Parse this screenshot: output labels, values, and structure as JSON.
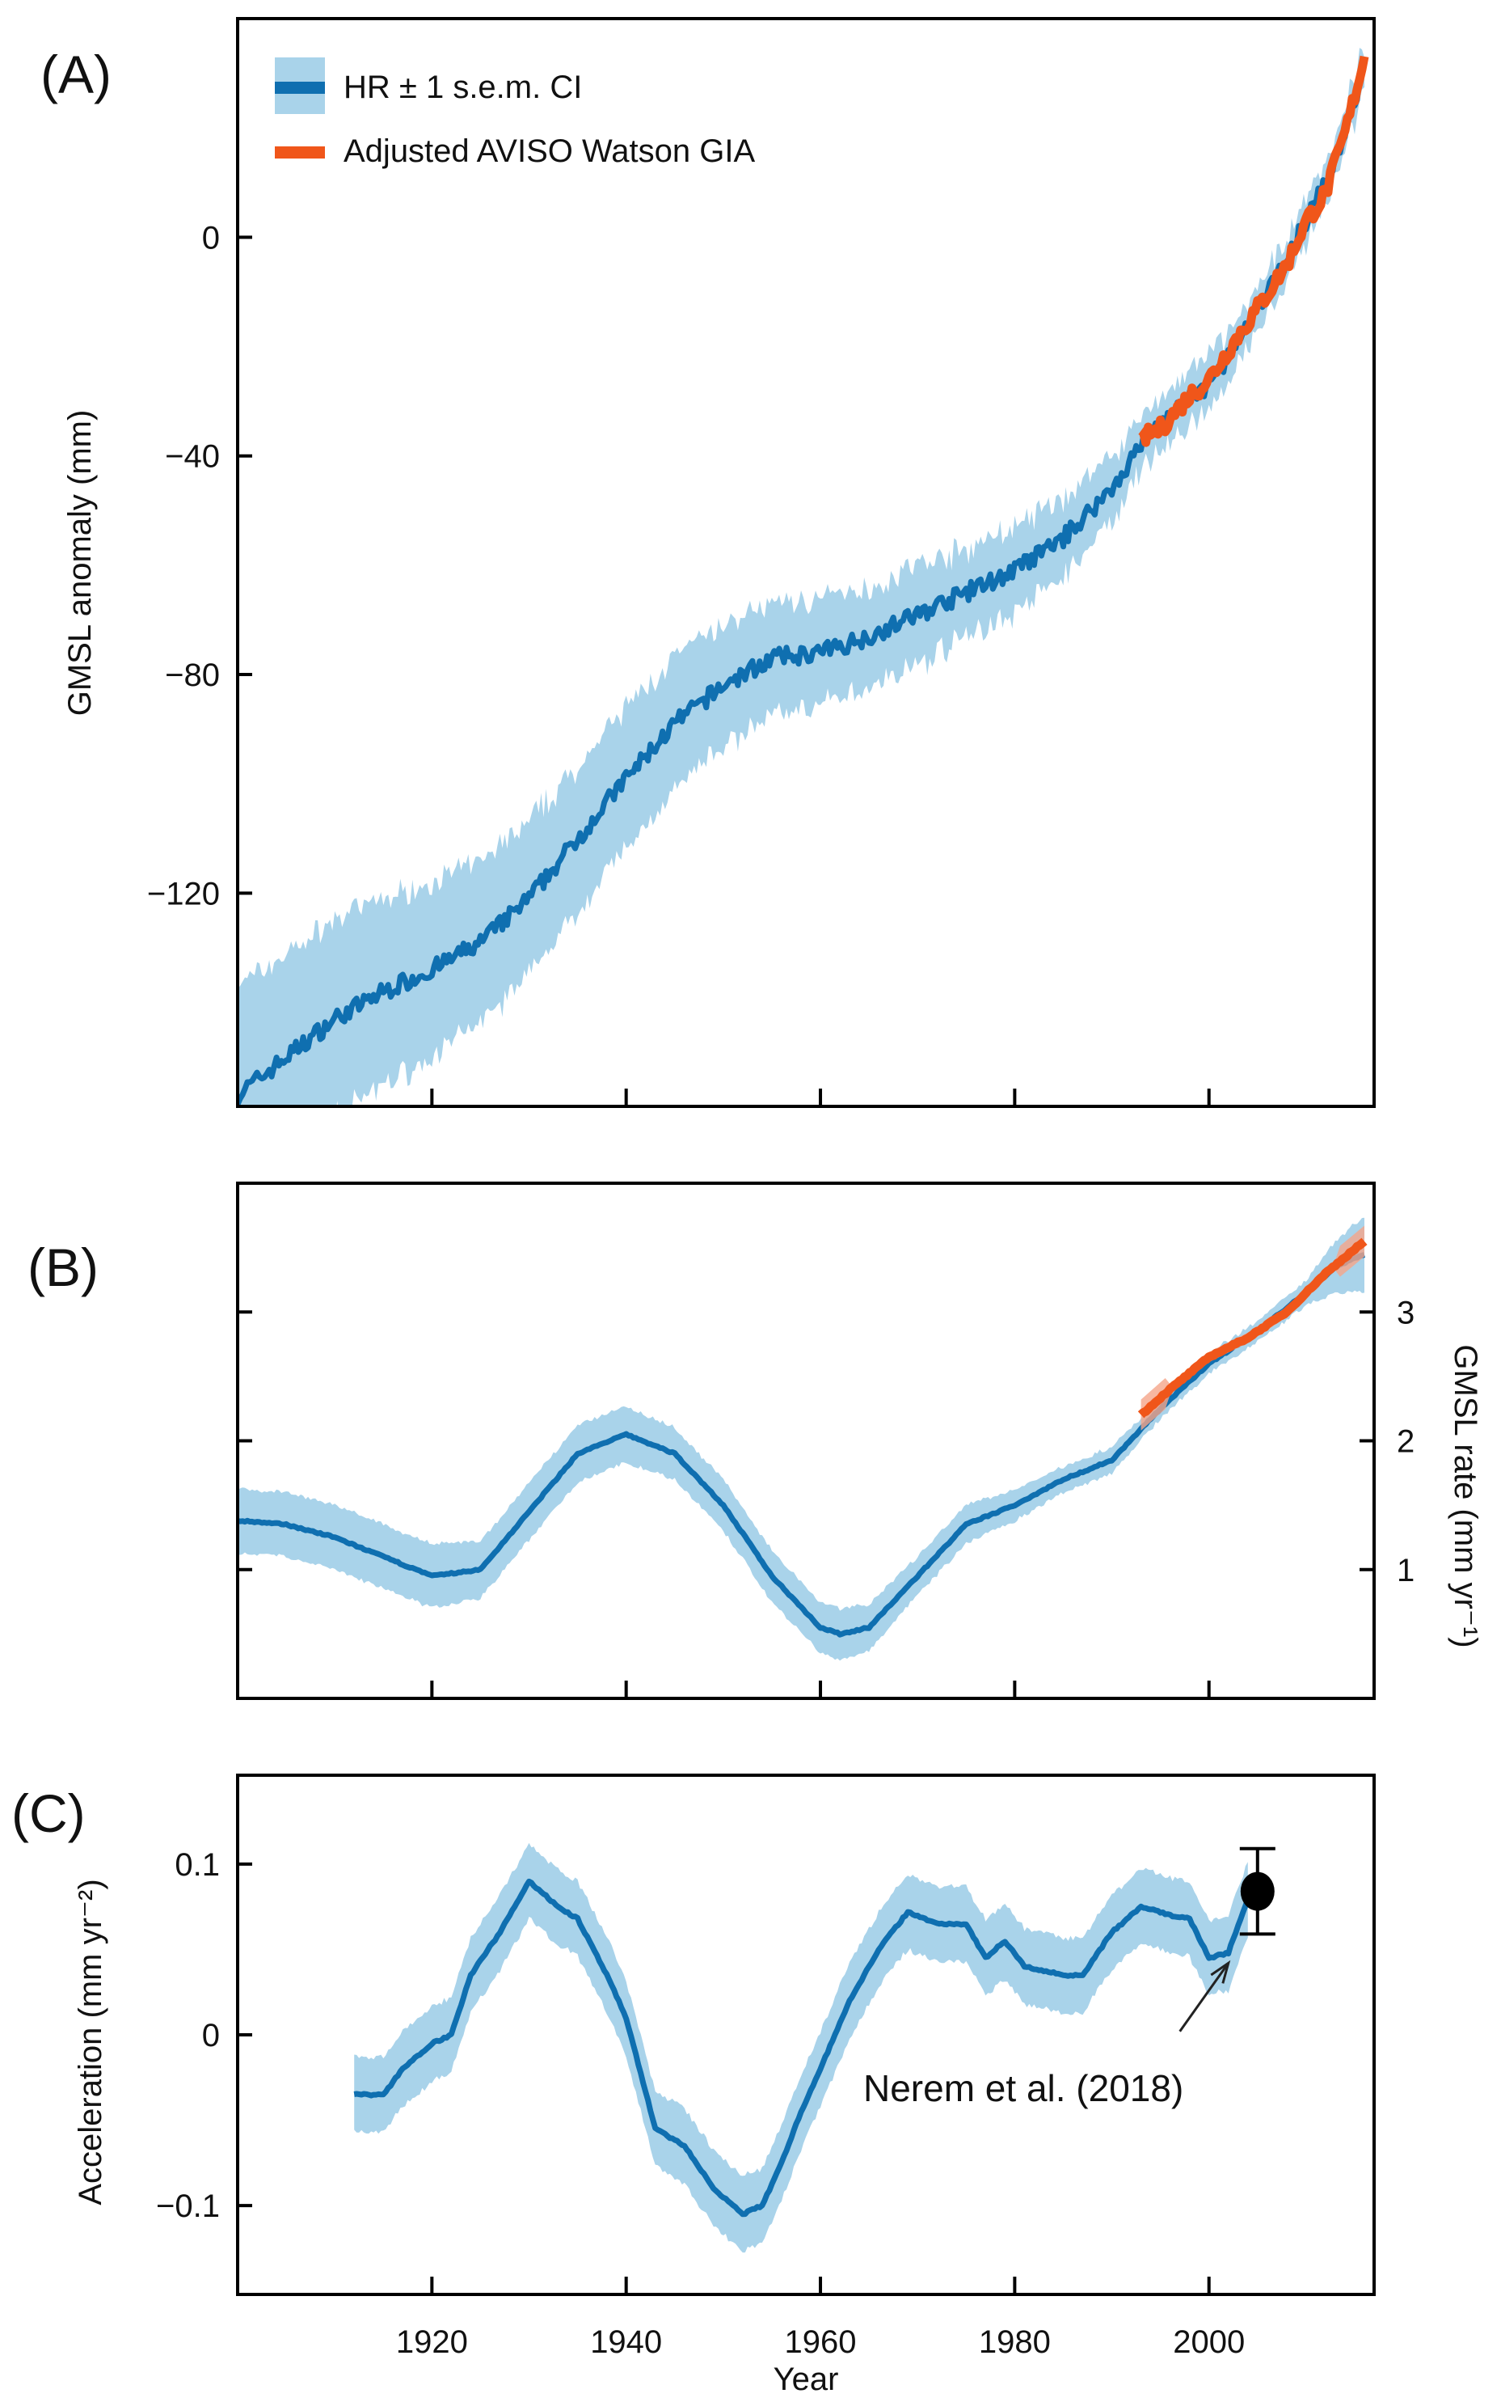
{
  "colors": {
    "band": "#a9d3ea",
    "line": "#0f6fb0",
    "aviso": "#f0561a",
    "aviso_band": "#f5a58a",
    "point": "#000000"
  },
  "chart_data": [
    {
      "type": "line",
      "panel_label": "(A)",
      "ylabel": "GMSL anomaly (mm)",
      "xlim": [
        1900,
        2017
      ],
      "ylim": [
        -159,
        40
      ],
      "yticks": [
        0,
        -40,
        -80,
        -120
      ],
      "ytick_labels": [
        "0",
        "−40",
        "−80",
        "−120"
      ],
      "xticks": [
        1920,
        1940,
        1960,
        1980,
        2000
      ],
      "legend": {
        "placement": "top-left",
        "entries": [
          "HR ± 1 s.e.m. CI",
          "Adjusted AVISO Watson GIA"
        ]
      },
      "series": [
        {
          "name": "HR ± 1 s.e.m. CI",
          "x": [
            1900,
            1905,
            1910,
            1915,
            1920,
            1925,
            1930,
            1935,
            1940,
            1945,
            1950,
            1955,
            1960,
            1965,
            1970,
            1975,
            1980,
            1985,
            1990,
            1993,
            1995,
            2000,
            2005,
            2010,
            2013,
            2016
          ],
          "y": [
            -157,
            -150,
            -143,
            -138,
            -134,
            -129,
            -121,
            -110,
            -99,
            -89,
            -82,
            -77,
            -76,
            -73,
            -69,
            -65,
            -61,
            -55,
            -46,
            -38,
            -34,
            -27,
            -14,
            3,
            14,
            31
          ],
          "ci": [
            20,
            19,
            18,
            17,
            16,
            15,
            14,
            13,
            13,
            12,
            11,
            10,
            10,
            9,
            9,
            8,
            8,
            7,
            6,
            5,
            5,
            5,
            4,
            4,
            4,
            4
          ]
        },
        {
          "name": "Adjusted AVISO Watson GIA",
          "x": [
            1993,
            1995,
            1998,
            2000,
            2003,
            2005,
            2008,
            2010,
            2012,
            2014,
            2016
          ],
          "y": [
            -37,
            -35,
            -29,
            -26,
            -18,
            -13,
            -5,
            3,
            8,
            19,
            33
          ]
        }
      ]
    },
    {
      "type": "line",
      "panel_label": "(B)",
      "ylabel": "GMSL rate (mm yr⁻¹)",
      "xlim": [
        1900,
        2017
      ],
      "ylim": [
        0,
        4
      ],
      "yticks": [
        1,
        2,
        3
      ],
      "ytick_labels": [
        "1",
        "2",
        "3"
      ],
      "xticks": [
        1920,
        1940,
        1960,
        1980,
        2000
      ],
      "series": [
        {
          "name": "HR",
          "x": [
            1900,
            1905,
            1910,
            1915,
            1920,
            1925,
            1930,
            1935,
            1940,
            1945,
            1950,
            1955,
            1960,
            1962,
            1965,
            1970,
            1975,
            1980,
            1985,
            1990,
            1995,
            2000,
            2005,
            2010,
            2013,
            2016
          ],
          "y": [
            1.38,
            1.35,
            1.25,
            1.1,
            0.95,
            1.0,
            1.45,
            1.9,
            2.05,
            1.9,
            1.5,
            0.95,
            0.55,
            0.5,
            0.55,
            0.95,
            1.35,
            1.5,
            1.7,
            1.85,
            2.25,
            2.6,
            2.85,
            3.15,
            3.35,
            3.45
          ],
          "ci": [
            0.25,
            0.25,
            0.25,
            0.25,
            0.25,
            0.22,
            0.22,
            0.22,
            0.22,
            0.2,
            0.2,
            0.2,
            0.2,
            0.2,
            0.18,
            0.15,
            0.15,
            0.12,
            0.1,
            0.1,
            0.08,
            0.08,
            0.08,
            0.1,
            0.2,
            0.3
          ]
        },
        {
          "name": "Adjusted AVISO Watson GIA",
          "x": [
            1993,
            1996,
            2000,
            2004,
            2008,
            2012,
            2016
          ],
          "y": [
            2.2,
            2.4,
            2.65,
            2.8,
            3.0,
            3.3,
            3.55
          ]
        }
      ]
    },
    {
      "type": "line",
      "panel_label": "(C)",
      "ylabel": "Acceleration (mm yr⁻²)",
      "xlabel": "Year",
      "xlim": [
        1900,
        2017
      ],
      "ylim": [
        -0.152,
        0.152
      ],
      "yticks": [
        0.1,
        0,
        -0.1
      ],
      "ytick_labels": [
        "0.1",
        "0",
        "−0.1"
      ],
      "xticks": [
        1920,
        1940,
        1960,
        1980,
        2000
      ],
      "xtick_labels": [
        "1920",
        "1940",
        "1960",
        "1980",
        "2000"
      ],
      "series": [
        {
          "name": "HR",
          "x": [
            1912,
            1915,
            1917,
            1920,
            1922,
            1924,
            1927,
            1930,
            1933,
            1935,
            1938,
            1940,
            1943,
            1946,
            1949,
            1952,
            1954,
            1956,
            1958,
            1960,
            1963,
            1966,
            1969,
            1972,
            1975,
            1977,
            1979,
            1981,
            1985,
            1987,
            1990,
            1993,
            1996,
            1998,
            2000,
            2002,
            2004
          ],
          "y": [
            -0.035,
            -0.035,
            -0.02,
            -0.005,
            0.0,
            0.035,
            0.06,
            0.09,
            0.075,
            0.068,
            0.035,
            0.01,
            -0.055,
            -0.065,
            -0.09,
            -0.105,
            -0.1,
            -0.075,
            -0.045,
            -0.02,
            0.02,
            0.05,
            0.072,
            0.065,
            0.065,
            0.045,
            0.055,
            0.04,
            0.035,
            0.035,
            0.06,
            0.075,
            0.07,
            0.068,
            0.045,
            0.048,
            0.08
          ],
          "ci": 0.022
        },
        {
          "name": "Nerem et al. (2018)",
          "type": "errorbar",
          "x": 2005,
          "y": 0.084,
          "yerr_low": 0.059,
          "yerr_high": 0.109
        }
      ],
      "annotation": {
        "text": "Nerem et al. (2018)",
        "arrow_from": [
          1997,
          0.002
        ],
        "arrow_to": [
          2002,
          0.042
        ]
      }
    }
  ]
}
